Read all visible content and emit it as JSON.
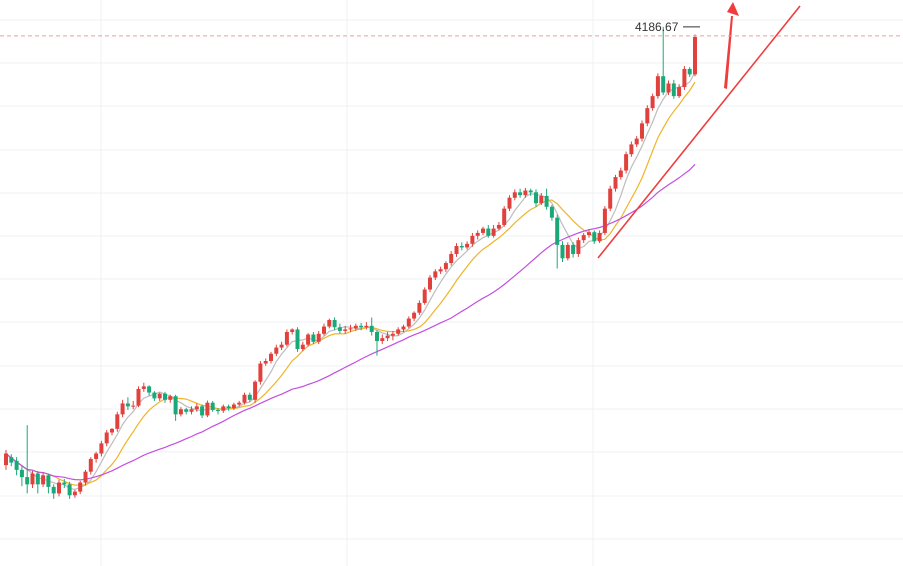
{
  "chart_data": {
    "type": "candlestick",
    "last_price_label": "4186.67",
    "ylim": [
      2700,
      4260
    ],
    "candles": [
      [
        2978,
        3010,
        2965,
        3020
      ],
      [
        3000,
        2985,
        2975,
        3008
      ],
      [
        2990,
        2965,
        2950,
        3000
      ],
      [
        2965,
        2945,
        2920,
        2975
      ],
      [
        2945,
        2925,
        2900,
        3088
      ],
      [
        2925,
        2955,
        2915,
        2962
      ],
      [
        2955,
        2925,
        2900,
        2962
      ],
      [
        2925,
        2950,
        2918,
        2958
      ],
      [
        2950,
        2918,
        2900,
        2955
      ],
      [
        2918,
        2900,
        2885,
        2925
      ],
      [
        2900,
        2930,
        2892,
        2938
      ],
      [
        2930,
        2925,
        2915,
        2940
      ],
      [
        2925,
        2895,
        2885,
        2932
      ],
      [
        2895,
        2905,
        2888,
        2910
      ],
      [
        2905,
        2930,
        2898,
        2935
      ],
      [
        2930,
        2960,
        2922,
        2965
      ],
      [
        2960,
        2995,
        2952,
        3000
      ],
      [
        2995,
        3010,
        2985,
        3015
      ],
      [
        3010,
        3038,
        3002,
        3045
      ],
      [
        3038,
        3068,
        3030,
        3075
      ],
      [
        3068,
        3078,
        3060,
        3080
      ],
      [
        3078,
        3118,
        3070,
        3125
      ],
      [
        3118,
        3148,
        3110,
        3158
      ],
      [
        3148,
        3140,
        3130,
        3165
      ],
      [
        3140,
        3142,
        3132,
        3155
      ],
      [
        3142,
        3188,
        3138,
        3195
      ],
      [
        3188,
        3195,
        3180,
        3205
      ],
      [
        3195,
        3178,
        3170,
        3198
      ],
      [
        3178,
        3162,
        3155,
        3182
      ],
      [
        3162,
        3175,
        3155,
        3178
      ],
      [
        3175,
        3158,
        3150,
        3180
      ],
      [
        3158,
        3168,
        3150,
        3172
      ],
      [
        3168,
        3118,
        3100,
        3172
      ],
      [
        3118,
        3132,
        3112,
        3138
      ],
      [
        3132,
        3125,
        3118,
        3136
      ],
      [
        3125,
        3132,
        3118,
        3140
      ],
      [
        3132,
        3140,
        3125,
        3148
      ],
      [
        3140,
        3115,
        3108,
        3145
      ],
      [
        3115,
        3150,
        3110,
        3156
      ],
      [
        3150,
        3130,
        3125,
        3155
      ],
      [
        3130,
        3128,
        3118,
        3135
      ],
      [
        3128,
        3140,
        3122,
        3145
      ],
      [
        3140,
        3135,
        3128,
        3145
      ],
      [
        3135,
        3145,
        3130,
        3150
      ],
      [
        3145,
        3150,
        3140,
        3155
      ],
      [
        3150,
        3172,
        3145,
        3178
      ],
      [
        3172,
        3158,
        3152,
        3178
      ],
      [
        3158,
        3208,
        3150,
        3212
      ],
      [
        3208,
        3258,
        3200,
        3265
      ],
      [
        3258,
        3265,
        3252,
        3272
      ],
      [
        3265,
        3285,
        3258,
        3290
      ],
      [
        3285,
        3302,
        3278,
        3310
      ],
      [
        3302,
        3310,
        3295,
        3318
      ],
      [
        3310,
        3345,
        3305,
        3352
      ],
      [
        3345,
        3352,
        3338,
        3355
      ],
      [
        3352,
        3298,
        3290,
        3358
      ],
      [
        3298,
        3310,
        3292,
        3318
      ],
      [
        3310,
        3338,
        3305,
        3342
      ],
      [
        3338,
        3318,
        3312,
        3345
      ],
      [
        3318,
        3340,
        3312,
        3348
      ],
      [
        3340,
        3360,
        3335,
        3368
      ],
      [
        3360,
        3378,
        3355,
        3382
      ],
      [
        3378,
        3358,
        3350,
        3385
      ],
      [
        3358,
        3348,
        3340,
        3368
      ],
      [
        3348,
        3352,
        3340,
        3362
      ],
      [
        3352,
        3355,
        3345,
        3365
      ],
      [
        3355,
        3362,
        3348,
        3368
      ],
      [
        3362,
        3358,
        3350,
        3370
      ],
      [
        3358,
        3362,
        3352,
        3372
      ],
      [
        3362,
        3345,
        3335,
        3385
      ],
      [
        3345,
        3320,
        3280,
        3350
      ],
      [
        3320,
        3328,
        3312,
        3338
      ],
      [
        3328,
        3335,
        3320,
        3345
      ],
      [
        3335,
        3340,
        3322,
        3348
      ],
      [
        3340,
        3352,
        3335,
        3358
      ],
      [
        3352,
        3360,
        3345,
        3365
      ],
      [
        3360,
        3382,
        3355,
        3388
      ],
      [
        3382,
        3398,
        3375,
        3402
      ],
      [
        3398,
        3425,
        3392,
        3432
      ],
      [
        3425,
        3462,
        3420,
        3468
      ],
      [
        3462,
        3495,
        3455,
        3502
      ],
      [
        3495,
        3512,
        3488,
        3518
      ],
      [
        3512,
        3518,
        3505,
        3525
      ],
      [
        3518,
        3535,
        3510,
        3540
      ],
      [
        3535,
        3560,
        3528,
        3568
      ],
      [
        3560,
        3582,
        3552,
        3590
      ],
      [
        3582,
        3578,
        3570,
        3592
      ],
      [
        3578,
        3588,
        3572,
        3595
      ],
      [
        3588,
        3610,
        3580,
        3618
      ],
      [
        3610,
        3618,
        3600,
        3625
      ],
      [
        3618,
        3630,
        3612,
        3635
      ],
      [
        3630,
        3610,
        3605,
        3640
      ],
      [
        3610,
        3630,
        3605,
        3640
      ],
      [
        3630,
        3640,
        3625,
        3648
      ],
      [
        3640,
        3685,
        3635,
        3692
      ],
      [
        3685,
        3715,
        3678,
        3722
      ],
      [
        3715,
        3730,
        3708,
        3738
      ],
      [
        3730,
        3722,
        3715,
        3740
      ],
      [
        3722,
        3735,
        3715,
        3742
      ],
      [
        3735,
        3730,
        3720,
        3740
      ],
      [
        3730,
        3700,
        3690,
        3738
      ],
      [
        3700,
        3720,
        3695,
        3728
      ],
      [
        3720,
        3690,
        3682,
        3740
      ],
      [
        3690,
        3660,
        3652,
        3695
      ],
      [
        3660,
        3585,
        3520,
        3668
      ],
      [
        3585,
        3548,
        3538,
        3595
      ],
      [
        3548,
        3585,
        3542,
        3592
      ],
      [
        3585,
        3560,
        3550,
        3592
      ],
      [
        3560,
        3598,
        3552,
        3605
      ],
      [
        3598,
        3612,
        3590,
        3618
      ],
      [
        3612,
        3620,
        3605,
        3628
      ],
      [
        3620,
        3595,
        3588,
        3625
      ],
      [
        3595,
        3618,
        3590,
        3625
      ],
      [
        3618,
        3685,
        3612,
        3692
      ],
      [
        3685,
        3740,
        3678,
        3748
      ],
      [
        3740,
        3772,
        3732,
        3778
      ],
      [
        3772,
        3790,
        3765,
        3798
      ],
      [
        3790,
        3835,
        3782,
        3842
      ],
      [
        3835,
        3862,
        3828,
        3870
      ],
      [
        3862,
        3878,
        3855,
        3885
      ],
      [
        3878,
        3920,
        3870,
        3928
      ],
      [
        3920,
        3962,
        3912,
        3970
      ],
      [
        3962,
        3995,
        3955,
        4002
      ],
      [
        3995,
        4050,
        3988,
        4058
      ],
      [
        4050,
        4005,
        3998,
        4186
      ],
      [
        4005,
        4030,
        3998,
        4038
      ],
      [
        4030,
        3995,
        3988,
        4040
      ],
      [
        3995,
        4020,
        3990,
        4028
      ],
      [
        4020,
        4070,
        4012,
        4078
      ],
      [
        4070,
        4055,
        4048,
        4075
      ],
      [
        4055,
        4158,
        4050,
        4165
      ]
    ]
  },
  "colors": {
    "up": "#e0413d",
    "down": "#1ba878",
    "ma_short": "#bdbdbd",
    "ma_mid": "#f0b429",
    "ma_long": "#c34fe0",
    "trendline": "#f03c3c",
    "arrow": "#f03c3c"
  }
}
